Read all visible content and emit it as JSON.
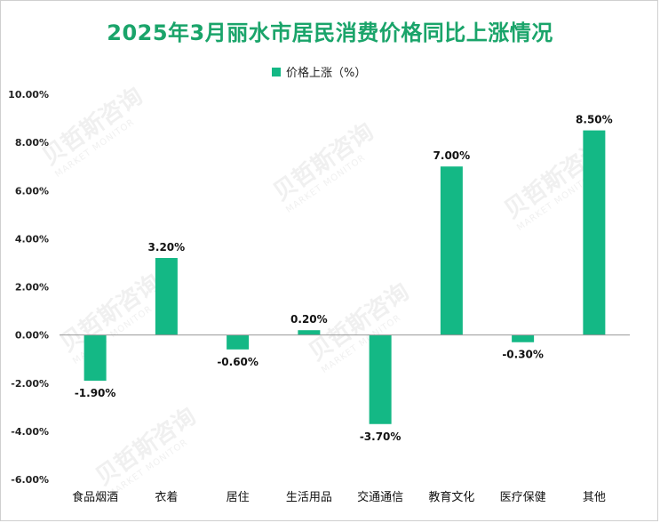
{
  "title": "2025年3月丽水市居民消费价格同比上涨情况",
  "watermark": {
    "cn": "贝哲斯咨询",
    "en": "MARKET MONITOR"
  },
  "colors": {
    "bar": "#14b885",
    "title": "#1aa46a",
    "axis": "#999999"
  },
  "chart_data": {
    "type": "bar",
    "categories": [
      "食品烟酒",
      "衣着",
      "居住",
      "生活用品",
      "交通通信",
      "教育文化",
      "医疗保健",
      "其他"
    ],
    "series": [
      {
        "name": "价格上涨（%）",
        "values": [
          -1.9,
          3.2,
          -0.6,
          0.2,
          -3.7,
          7.0,
          -0.3,
          8.5
        ]
      }
    ],
    "data_labels": [
      "-1.90%",
      "3.20%",
      "-0.60%",
      "0.20%",
      "-3.70%",
      "7.00%",
      "-0.30%",
      "8.50%"
    ],
    "ylim": [
      -6,
      10
    ],
    "yticks": [
      10,
      8,
      6,
      4,
      2,
      0,
      -2,
      -4,
      -6
    ],
    "ytick_labels": [
      "10.00%",
      "8.00%",
      "6.00%",
      "4.00%",
      "2.00%",
      "0.00%",
      "-2.00%",
      "-4.00%",
      "-6.00%"
    ],
    "grid": false,
    "legend_position": "top"
  }
}
